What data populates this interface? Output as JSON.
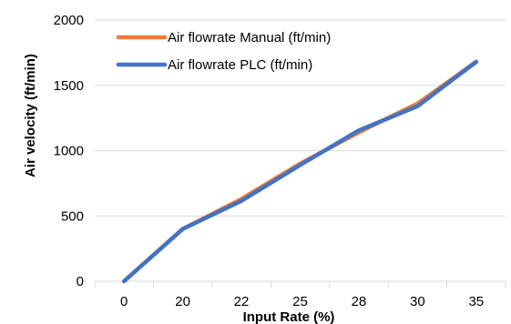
{
  "chart_data": {
    "type": "line",
    "categories": [
      "0",
      "20",
      "22",
      "25",
      "28",
      "30",
      "35"
    ],
    "series": [
      {
        "name": "Air flowrate Manual (ft/min)",
        "color": "#ED7D31",
        "values": [
          0,
          400,
          630,
          900,
          1140,
          1360,
          1680
        ]
      },
      {
        "name": "Air flowrate PLC (ft/min)",
        "color": "#4472C4",
        "values": [
          0,
          400,
          615,
          890,
          1155,
          1340,
          1680
        ]
      }
    ],
    "xlabel": "Input Rate (%)",
    "ylabel": "Air velocity (ft/min)",
    "ylim": [
      0,
      2000
    ],
    "yticks": [
      0,
      500,
      1000,
      1500,
      2000
    ],
    "grid": true,
    "legend": "top-left"
  }
}
